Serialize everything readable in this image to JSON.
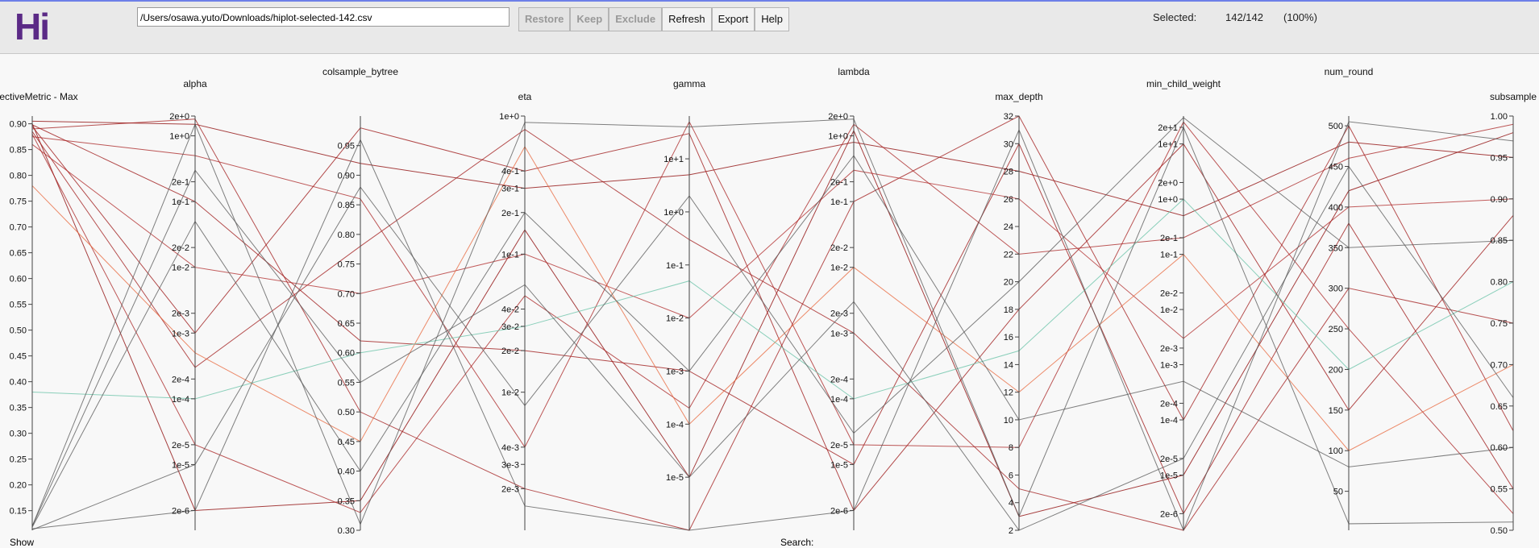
{
  "header": {
    "logo": "Hi",
    "file_path": "/Users/osawa.yuto/Downloads/hiplot-selected-142.csv",
    "buttons": [
      {
        "label": "Restore",
        "enabled": false
      },
      {
        "label": "Keep",
        "enabled": false
      },
      {
        "label": "Exclude",
        "enabled": false
      },
      {
        "label": "Refresh",
        "enabled": true
      },
      {
        "label": "Export",
        "enabled": true
      },
      {
        "label": "Help",
        "enabled": true
      }
    ],
    "selected_label": "Selected:",
    "selected_count": "142/142",
    "selected_percent": "(100%)"
  },
  "footer": {
    "show_label": "Show",
    "search_label": "Search:"
  },
  "chart_data": {
    "type": "parallel",
    "axes": [
      {
        "name": "objectiveMetric - Max",
        "scale": "linear",
        "ylim": [
          0.112,
          0.915
        ],
        "yticks": [
          {
            "value": 0.15,
            "label": "0.15"
          },
          {
            "value": 0.2,
            "label": "0.20"
          },
          {
            "value": 0.25,
            "label": "0.25"
          },
          {
            "value": 0.3,
            "label": "0.30"
          },
          {
            "value": 0.35,
            "label": "0.35"
          },
          {
            "value": 0.4,
            "label": "0.40"
          },
          {
            "value": 0.45,
            "label": "0.45"
          },
          {
            "value": 0.5,
            "label": "0.50"
          },
          {
            "value": 0.55,
            "label": "0.55"
          },
          {
            "value": 0.6,
            "label": "0.60"
          },
          {
            "value": 0.65,
            "label": "0.65"
          },
          {
            "value": 0.7,
            "label": "0.70"
          },
          {
            "value": 0.75,
            "label": "0.75"
          },
          {
            "value": 0.8,
            "label": "0.80"
          },
          {
            "value": 0.85,
            "label": "0.85"
          },
          {
            "value": 0.9,
            "label": "0.90"
          }
        ]
      },
      {
        "name": "alpha",
        "scale": "log",
        "ylim": [
          1e-06,
          2
        ],
        "yticks": [
          {
            "value": 2,
            "label": "2e+0"
          },
          {
            "value": 1,
            "label": "1e+0"
          },
          {
            "value": 0.2,
            "label": "2e-1"
          },
          {
            "value": 0.1,
            "label": "1e-1"
          },
          {
            "value": 0.02,
            "label": "2e-2"
          },
          {
            "value": 0.01,
            "label": "1e-2"
          },
          {
            "value": 0.002,
            "label": "2e-3"
          },
          {
            "value": 0.001,
            "label": "1e-3"
          },
          {
            "value": 0.0002,
            "label": "2e-4"
          },
          {
            "value": 0.0001,
            "label": "1e-4"
          },
          {
            "value": 2e-05,
            "label": "2e-5"
          },
          {
            "value": 1e-05,
            "label": "1e-5"
          },
          {
            "value": 2e-06,
            "label": "2e-6"
          }
        ]
      },
      {
        "name": "colsample_bytree",
        "scale": "linear",
        "ylim": [
          0.3,
          1.0
        ],
        "yticks": [
          {
            "value": 0.3,
            "label": "0.30"
          },
          {
            "value": 0.35,
            "label": "0.35"
          },
          {
            "value": 0.4,
            "label": "0.40"
          },
          {
            "value": 0.45,
            "label": "0.45"
          },
          {
            "value": 0.5,
            "label": "0.50"
          },
          {
            "value": 0.55,
            "label": "0.55"
          },
          {
            "value": 0.6,
            "label": "0.60"
          },
          {
            "value": 0.65,
            "label": "0.65"
          },
          {
            "value": 0.7,
            "label": "0.70"
          },
          {
            "value": 0.75,
            "label": "0.75"
          },
          {
            "value": 0.8,
            "label": "0.80"
          },
          {
            "value": 0.85,
            "label": "0.85"
          },
          {
            "value": 0.9,
            "label": "0.90"
          },
          {
            "value": 0.95,
            "label": "0.95"
          }
        ]
      },
      {
        "name": "eta",
        "scale": "log",
        "ylim": [
          0.001,
          1
        ],
        "yticks": [
          {
            "value": 1,
            "label": "1e+0"
          },
          {
            "value": 0.4,
            "label": "4e-1"
          },
          {
            "value": 0.3,
            "label": "3e-1"
          },
          {
            "value": 0.2,
            "label": "2e-1"
          },
          {
            "value": 0.1,
            "label": "1e-1"
          },
          {
            "value": 0.04,
            "label": "4e-2"
          },
          {
            "value": 0.03,
            "label": "3e-2"
          },
          {
            "value": 0.02,
            "label": "2e-2"
          },
          {
            "value": 0.01,
            "label": "1e-2"
          },
          {
            "value": 0.004,
            "label": "4e-3"
          },
          {
            "value": 0.003,
            "label": "3e-3"
          },
          {
            "value": 0.002,
            "label": "2e-3"
          }
        ]
      },
      {
        "name": "gamma",
        "scale": "log",
        "ylim": [
          1e-06,
          64
        ],
        "yticks": [
          {
            "value": 10,
            "label": "1e+1"
          },
          {
            "value": 1,
            "label": "1e+0"
          },
          {
            "value": 0.1,
            "label": "1e-1"
          },
          {
            "value": 0.01,
            "label": "1e-2"
          },
          {
            "value": 0.001,
            "label": "1e-3"
          },
          {
            "value": 0.0001,
            "label": "1e-4"
          },
          {
            "value": 1e-05,
            "label": "1e-5"
          }
        ]
      },
      {
        "name": "lambda",
        "scale": "log",
        "ylim": [
          1e-06,
          2
        ],
        "yticks": [
          {
            "value": 2,
            "label": "2e+0"
          },
          {
            "value": 1,
            "label": "1e+0"
          },
          {
            "value": 0.2,
            "label": "2e-1"
          },
          {
            "value": 0.1,
            "label": "1e-1"
          },
          {
            "value": 0.02,
            "label": "2e-2"
          },
          {
            "value": 0.01,
            "label": "1e-2"
          },
          {
            "value": 0.002,
            "label": "2e-3"
          },
          {
            "value": 0.001,
            "label": "1e-3"
          },
          {
            "value": 0.0002,
            "label": "2e-4"
          },
          {
            "value": 0.0001,
            "label": "1e-4"
          },
          {
            "value": 2e-05,
            "label": "2e-5"
          },
          {
            "value": 1e-05,
            "label": "1e-5"
          },
          {
            "value": 2e-06,
            "label": "2e-6"
          }
        ]
      },
      {
        "name": "max_depth",
        "scale": "linear",
        "ylim": [
          2,
          32
        ],
        "yticks": [
          2,
          4,
          6,
          8,
          10,
          12,
          14,
          16,
          18,
          20,
          22,
          24,
          26,
          28,
          30,
          32
        ]
      },
      {
        "name": "min_child_weight",
        "scale": "log",
        "ylim": [
          1e-06,
          32
        ],
        "yticks": [
          {
            "value": 20,
            "label": "2e+1"
          },
          {
            "value": 10,
            "label": "1e+1"
          },
          {
            "value": 2,
            "label": "2e+0"
          },
          {
            "value": 1,
            "label": "1e+0"
          },
          {
            "value": 0.2,
            "label": "2e-1"
          },
          {
            "value": 0.1,
            "label": "1e-1"
          },
          {
            "value": 0.02,
            "label": "2e-2"
          },
          {
            "value": 0.01,
            "label": "1e-2"
          },
          {
            "value": 0.002,
            "label": "2e-3"
          },
          {
            "value": 0.001,
            "label": "1e-3"
          },
          {
            "value": 0.0002,
            "label": "2e-4"
          },
          {
            "value": 0.0001,
            "label": "1e-4"
          },
          {
            "value": 2e-05,
            "label": "2e-5"
          },
          {
            "value": 1e-05,
            "label": "1e-5"
          },
          {
            "value": 2e-06,
            "label": "2e-6"
          }
        ]
      },
      {
        "name": "num_round",
        "scale": "linear",
        "ylim": [
          2,
          512
        ],
        "yticks": [
          50,
          100,
          150,
          200,
          250,
          300,
          350,
          400,
          450,
          500
        ]
      },
      {
        "name": "subsample",
        "scale": "linear",
        "ylim": [
          0.5,
          1.0
        ],
        "yticks": [
          {
            "value": 0.5,
            "label": "0.50"
          },
          {
            "value": 0.55,
            "label": "0.55"
          },
          {
            "value": 0.6,
            "label": "0.60"
          },
          {
            "value": 0.65,
            "label": "0.65"
          },
          {
            "value": 0.7,
            "label": "0.70"
          },
          {
            "value": 0.75,
            "label": "0.75"
          },
          {
            "value": 0.8,
            "label": "0.80"
          },
          {
            "value": 0.85,
            "label": "0.85"
          },
          {
            "value": 0.9,
            "label": "0.90"
          },
          {
            "value": 0.95,
            "label": "0.95"
          },
          {
            "value": 1.0,
            "label": "1.00"
          }
        ]
      }
    ],
    "rows": [
      {
        "color": "#8b0000",
        "values": [
          0.905,
          1.5,
          0.92,
          0.3,
          5,
          0.8,
          28,
          0.5,
          480,
          0.95
        ]
      },
      {
        "color": "#8b0000",
        "values": [
          0.9,
          2e-06,
          0.35,
          0.15,
          1e-05,
          1.2,
          3,
          1e-05,
          420,
          0.98
        ]
      },
      {
        "color": "#9b1010",
        "values": [
          0.898,
          0.1,
          0.62,
          0.02,
          0.001,
          1e-05,
          30,
          2e-06,
          380,
          0.55
        ]
      },
      {
        "color": "#9b1010",
        "values": [
          0.895,
          0.001,
          0.98,
          0.4,
          30,
          2e-06,
          18,
          10,
          150,
          0.88
        ]
      },
      {
        "color": "#a01818",
        "values": [
          0.89,
          1.8,
          0.5,
          0.002,
          1e-06,
          0.1,
          32,
          0.0001,
          500,
          0.62
        ]
      },
      {
        "color": "#a01818",
        "values": [
          0.885,
          0.0003,
          0.78,
          0.8,
          0.3,
          0.001,
          5,
          1e-06,
          300,
          0.75
        ]
      },
      {
        "color": "#a82020",
        "values": [
          0.88,
          2e-05,
          0.33,
          0.05,
          0.0002,
          1.5,
          22,
          0.2,
          460,
          0.99
        ]
      },
      {
        "color": "#a82020",
        "values": [
          0.875,
          0.5,
          0.86,
          0.004,
          50,
          2e-05,
          8,
          25,
          250,
          0.52
        ]
      },
      {
        "color": "#b02828",
        "values": [
          0.86,
          0.01,
          0.7,
          0.1,
          0.01,
          0.3,
          26,
          0.003,
          400,
          0.9
        ]
      },
      {
        "color": "#e8663a",
        "values": [
          0.78,
          0.0005,
          0.45,
          0.6,
          0.0001,
          0.01,
          12,
          0.1,
          100,
          0.7
        ]
      },
      {
        "color": "#66c2a5",
        "values": [
          0.38,
          0.0001,
          0.6,
          0.03,
          0.05,
          0.0001,
          15,
          1,
          200,
          0.8
        ]
      },
      {
        "color": "#555555",
        "values": [
          0.12,
          1.5,
          0.31,
          0.9,
          40,
          1.8,
          3,
          20,
          10,
          0.51
        ]
      },
      {
        "color": "#555555",
        "values": [
          0.115,
          2e-06,
          0.96,
          0.0015,
          1e-06,
          2e-06,
          31,
          1e-06,
          505,
          0.97
        ]
      },
      {
        "color": "#555555",
        "values": [
          0.118,
          0.05,
          0.4,
          0.2,
          0.001,
          0.5,
          10,
          0.0005,
          80,
          0.6
        ]
      },
      {
        "color": "#555555",
        "values": [
          0.113,
          1e-05,
          0.88,
          0.008,
          2,
          3e-05,
          20,
          30,
          350,
          0.85
        ]
      },
      {
        "color": "#555555",
        "values": [
          0.12,
          0.3,
          0.55,
          0.06,
          1e-05,
          0.003,
          2,
          2e-05,
          450,
          0.66
        ]
      }
    ]
  }
}
